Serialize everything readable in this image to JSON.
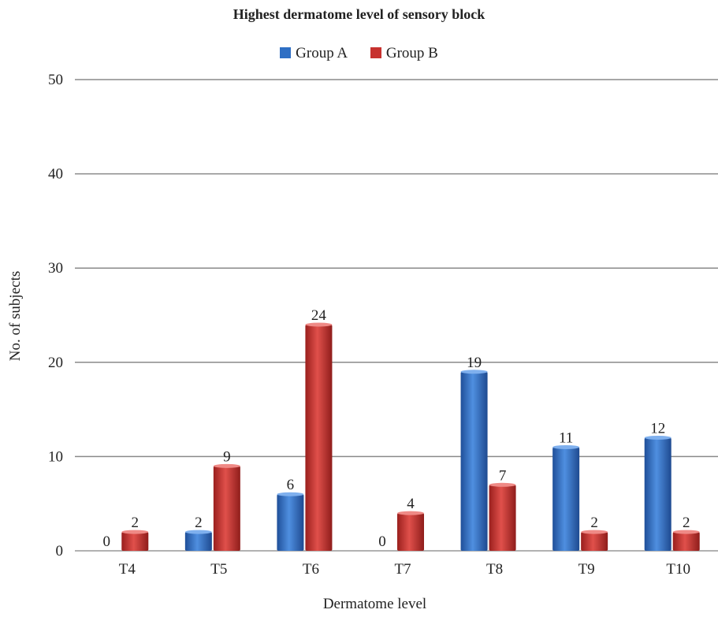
{
  "chart_data": {
    "type": "bar",
    "title": "Highest dermatome level of sensory block",
    "xlabel": "Dermatome level",
    "ylabel": "No. of subjects",
    "categories": [
      "T4",
      "T5",
      "T6",
      "T7",
      "T8",
      "T9",
      "T10"
    ],
    "series": [
      {
        "name": "Group A",
        "color": "#2f6fc4",
        "values": [
          0,
          2,
          6,
          0,
          19,
          11,
          12
        ]
      },
      {
        "name": "Group B",
        "color": "#c7322f",
        "values": [
          2,
          9,
          24,
          4,
          7,
          2,
          2
        ]
      }
    ],
    "ylim": [
      0,
      50
    ],
    "yticks": [
      0,
      10,
      20,
      30,
      40,
      50
    ],
    "grid": true,
    "legend_position": "top"
  }
}
